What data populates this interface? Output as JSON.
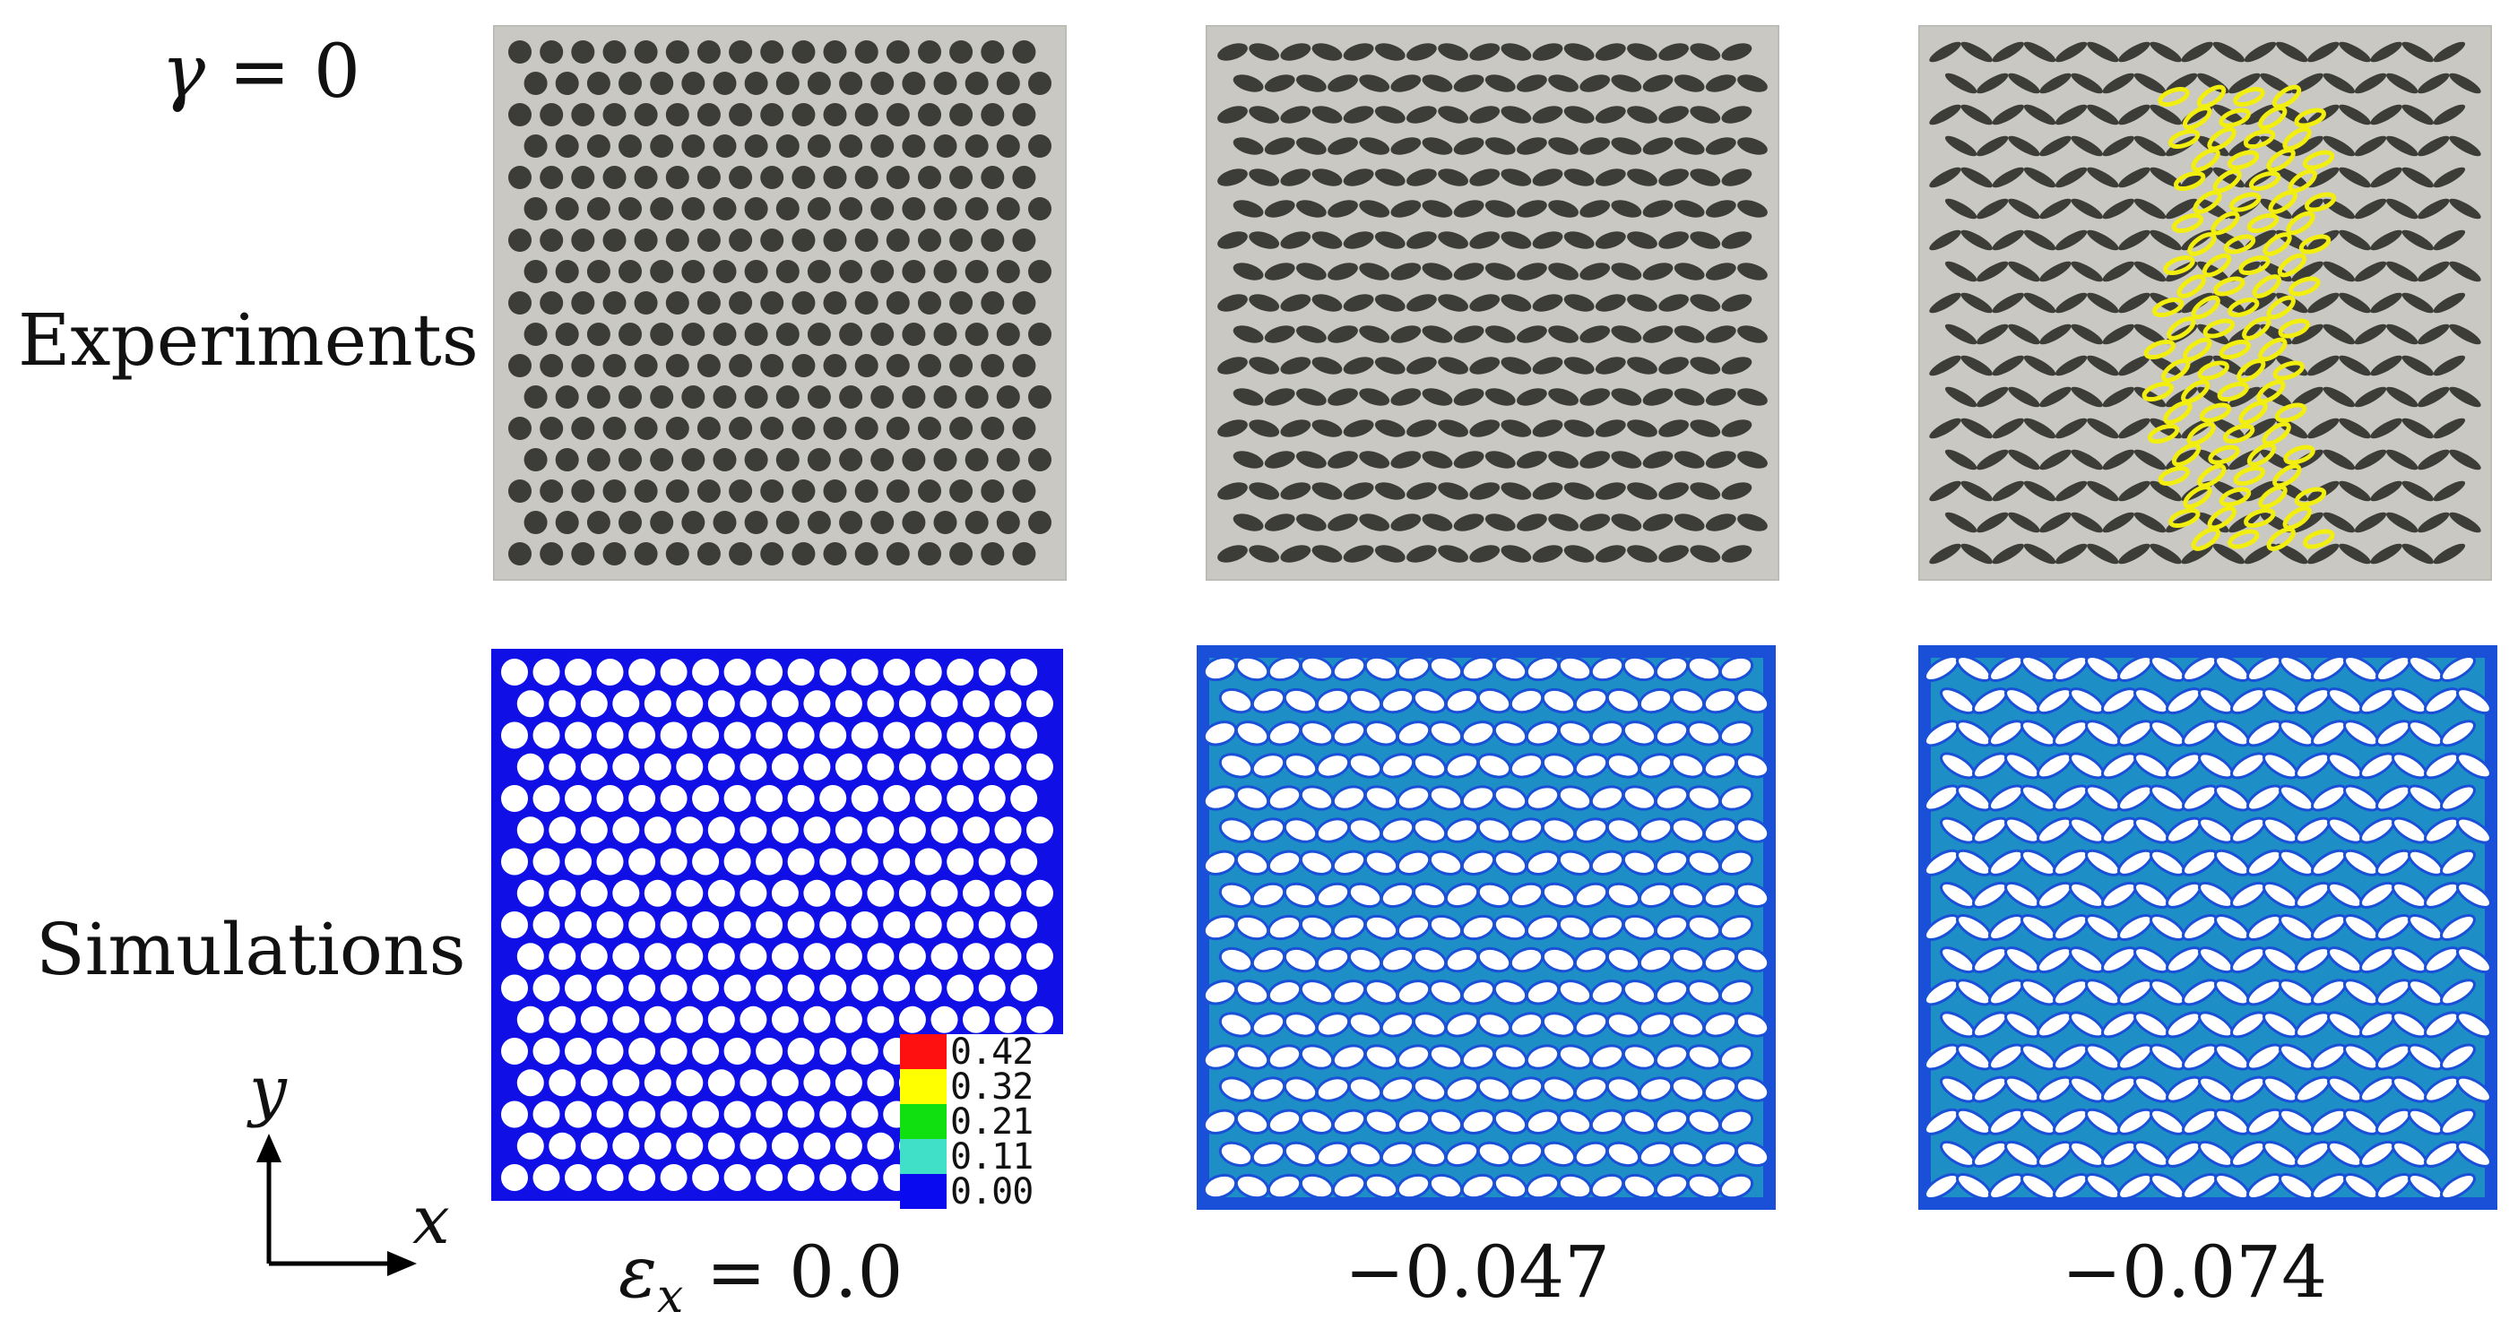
{
  "gamma_label": {
    "symbol": "γ",
    "rest": " = 0"
  },
  "rows": {
    "experiments": "Experiments",
    "simulations": "Simulations"
  },
  "strains": {
    "first_symbol": "ε",
    "first_sub": "x",
    "first_rest": " = 0.0",
    "second": "−0.047",
    "third": "−0.074"
  },
  "axes": {
    "y": "y",
    "x": "x"
  },
  "legend": {
    "entries": [
      {
        "label": "0.42",
        "color": "#ff1010"
      },
      {
        "label": "0.32",
        "color": "#ffff00"
      },
      {
        "label": "0.21",
        "color": "#10e010"
      },
      {
        "label": "0.11",
        "color": "#40e0c8"
      },
      {
        "label": "0.00",
        "color": "#0a0af0"
      }
    ]
  },
  "colors": {
    "photo_bg": "#c9c8c2",
    "photo_hole": "#3c3d38",
    "sim_matrix": "#1010e6",
    "sim_deformed": "#1a4fd8",
    "sim_highlight": "#22c3b8",
    "ellipse_outline": "#f2ee10"
  }
}
